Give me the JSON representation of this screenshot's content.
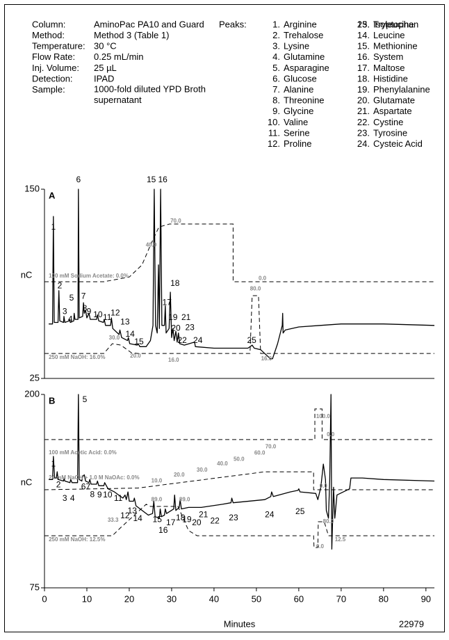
{
  "conditions": [
    {
      "label": "Column:",
      "value": "AminoPac PA10 and Guard"
    },
    {
      "label": "Method:",
      "value": "Method 3 (Table 1)"
    },
    {
      "label": "Temperature:",
      "value": "30 °C"
    },
    {
      "label": "Flow Rate:",
      "value": "0.25 mL/min"
    },
    {
      "label": "Inj. Volume:",
      "value": "25 µL"
    },
    {
      "label": "Detection:",
      "value": "IPAD"
    },
    {
      "label": "Sample:",
      "value": "1000-fold diluted YPD Broth supernatant"
    }
  ],
  "peaks_label": "Peaks:",
  "peak_names": [
    {
      "num": "1.",
      "name": "Arginine"
    },
    {
      "num": "2.",
      "name": "Trehalose"
    },
    {
      "num": "3.",
      "name": "Lysine"
    },
    {
      "num": "4.",
      "name": "Glutamine"
    },
    {
      "num": "5.",
      "name": "Asparagine"
    },
    {
      "num": "6.",
      "name": "Glucose"
    },
    {
      "num": "7.",
      "name": "Alanine"
    },
    {
      "num": "8.",
      "name": "Threonine"
    },
    {
      "num": "9.",
      "name": "Glycine"
    },
    {
      "num": "10.",
      "name": "Valine"
    },
    {
      "num": "11.",
      "name": "Serine"
    },
    {
      "num": "12.",
      "name": "Proline"
    },
    {
      "num": "13.",
      "name": "Isoleucine"
    },
    {
      "num": "14.",
      "name": "Leucine"
    },
    {
      "num": "15.",
      "name": "Methionine"
    },
    {
      "num": "16.",
      "name": "System"
    },
    {
      "num": "17.",
      "name": "Maltose"
    },
    {
      "num": "18.",
      "name": "Histidine"
    },
    {
      "num": "19.",
      "name": "Phenylalanine"
    },
    {
      "num": "20.",
      "name": "Glutamate"
    },
    {
      "num": "21.",
      "name": "Aspartate"
    },
    {
      "num": "22.",
      "name": "Cystine"
    },
    {
      "num": "23.",
      "name": "Tyrosine"
    },
    {
      "num": "24.",
      "name": "Cysteic Acid"
    },
    {
      "num": "25.",
      "name": "Tryptophan"
    }
  ],
  "figure_id": "22979",
  "chart_data": [
    {
      "type": "line",
      "panel_label": "A",
      "ylabel": "nC",
      "xlim": [
        0,
        92
      ],
      "ylim": [
        25,
        150
      ],
      "yticks": [
        25,
        150
      ],
      "color": "#000000",
      "trace": {
        "x": [
          1.0,
          1.9,
          2.1,
          2.3,
          3.2,
          3.4,
          3.6,
          4.5,
          4.6,
          4.8,
          5.8,
          5.9,
          6.1,
          6.9,
          7.0,
          7.2,
          7.9,
          8.0,
          8.2,
          9.0,
          9.2,
          9.4,
          9.7,
          10.0,
          10.5,
          10.8,
          12.3,
          12.5,
          12.8,
          13.9,
          14.1,
          14.4,
          15.6,
          15.8,
          16.1,
          17.6,
          17.8,
          18.2,
          19.6,
          19.8,
          20.1,
          21.9,
          22.1,
          22.5,
          24.0,
          25.0,
          25.6,
          25.9,
          26.2,
          26.6,
          26.9,
          27.1,
          27.4,
          27.7,
          28.3,
          28.5,
          28.7,
          29.4,
          29.7,
          30.0,
          30.3,
          30.6,
          31.0,
          31.3,
          31.6,
          31.9,
          33.0,
          35.4,
          35.6,
          40,
          48,
          49,
          49.5,
          51,
          53.3,
          53.8,
          55,
          56.1,
          56.2,
          56.3,
          56.8,
          60,
          65,
          70,
          80,
          92
        ],
        "y": [
          61,
          61,
          132,
          62,
          62,
          83,
          63,
          62,
          66,
          62,
          63,
          64,
          62,
          63,
          68,
          64,
          64,
          150,
          65,
          66,
          75,
          68,
          70,
          65,
          68,
          64,
          64,
          67,
          63,
          62,
          64,
          60,
          60,
          65,
          58,
          54,
          57,
          52,
          50,
          52,
          48,
          47,
          48,
          46,
          46,
          50,
          60,
          150,
          60,
          55,
          100,
          58,
          150,
          60,
          60,
          73,
          55,
          58,
          82,
          52,
          58,
          50,
          56,
          49,
          55,
          48,
          47,
          49,
          46,
          45,
          45,
          47,
          45,
          44,
          38,
          38,
          48,
          60,
          68,
          55,
          57,
          59,
          60,
          61,
          61,
          60
        ]
      },
      "gradients": [
        {
          "x": [
            0,
            14,
            20,
            23,
            25,
            27,
            29.5,
            44.5,
            44.5,
            92
          ],
          "y": [
            88.9,
            88.9,
            92,
            100,
            113,
            125,
            127,
            127,
            88.9,
            88.9
          ]
        },
        {
          "x": [
            0,
            14,
            16,
            18,
            20.5,
            22,
            48.5,
            49,
            50.5,
            51,
            92
          ],
          "y": [
            41.5,
            41.5,
            48,
            47,
            42,
            41.5,
            41.5,
            79.7,
            79.7,
            41.5,
            41.5
          ]
        }
      ],
      "peaks": [
        {
          "label": "1",
          "x": 2.1,
          "y": 124.7
        },
        {
          "label": "2",
          "x": 3.6,
          "y": 86
        },
        {
          "label": "3",
          "x": 4.8,
          "y": 69
        },
        {
          "label": "4",
          "x": 6.1,
          "y": 64
        },
        {
          "label": "5",
          "x": 6.4,
          "y": 78
        },
        {
          "label": "6",
          "x": 8.0,
          "y": 156
        },
        {
          "label": "7",
          "x": 9.2,
          "y": 79
        },
        {
          "label": "8",
          "x": 9.5,
          "y": 71
        },
        {
          "label": "9",
          "x": 10.5,
          "y": 69
        },
        {
          "label": "10",
          "x": 12.6,
          "y": 67
        },
        {
          "label": "11",
          "x": 14.8,
          "y": 65
        },
        {
          "label": "12",
          "x": 16.7,
          "y": 68
        },
        {
          "label": "13",
          "x": 19.0,
          "y": 62
        },
        {
          "label": "14",
          "x": 20.2,
          "y": 54
        },
        {
          "label": "15",
          "x": 22.3,
          "y": 49
        },
        {
          "label": "15",
          "x": 25.2,
          "y": 156
        },
        {
          "label": "16",
          "x": 27.9,
          "y": 156
        },
        {
          "label": "17",
          "x": 28.9,
          "y": 75
        },
        {
          "label": "18",
          "x": 30.8,
          "y": 87.5
        },
        {
          "label": "19",
          "x": 30.3,
          "y": 65
        },
        {
          "label": "20",
          "x": 31.0,
          "y": 58
        },
        {
          "label": "21",
          "x": 33.4,
          "y": 65
        },
        {
          "label": "22",
          "x": 32.5,
          "y": 50
        },
        {
          "label": "23",
          "x": 34.3,
          "y": 58.5
        },
        {
          "label": "24",
          "x": 36.2,
          "y": 50
        },
        {
          "label": "25",
          "x": 48.9,
          "y": 50
        }
      ],
      "annotations": [
        {
          "text": "100 mM Sodium Acetate: 0.0%",
          "x": 1.0,
          "y": 92.6
        },
        {
          "text": "250 mM NaOH: 16.0%",
          "x": 1.0,
          "y": 38.8
        },
        {
          "text": "30.0",
          "x": 15.2,
          "y": 51.7
        },
        {
          "text": "40.0",
          "x": 23.9,
          "y": 113
        },
        {
          "text": "70.0",
          "x": 29.7,
          "y": 129
        },
        {
          "text": "20.0",
          "x": 20.2,
          "y": 39.7
        },
        {
          "text": "16.0",
          "x": 29.2,
          "y": 37
        },
        {
          "text": "0.0",
          "x": 50.5,
          "y": 91
        },
        {
          "text": "80.0",
          "x": 48.5,
          "y": 84
        },
        {
          "text": "16.0",
          "x": 51.1,
          "y": 38
        }
      ]
    },
    {
      "type": "line",
      "panel_label": "B",
      "ylabel": "nC",
      "xlabel": "Minutes",
      "xlim": [
        0,
        92
      ],
      "ylim": [
        75,
        200
      ],
      "yticks": [
        75,
        200
      ],
      "xticks": [
        0,
        10,
        20,
        30,
        40,
        50,
        60,
        70,
        80,
        90
      ],
      "color": "#000000",
      "trace": {
        "x": [
          1.0,
          1.9,
          2.1,
          2.4,
          2.8,
          3.0,
          3.2,
          4.5,
          4.6,
          4.8,
          6.0,
          6.2,
          6.5,
          7.8,
          8.0,
          8.2,
          8.8,
          9.0,
          9.4,
          9.7,
          10.5,
          10.7,
          11,
          12.3,
          12.5,
          12.8,
          14,
          14.2,
          15,
          16.5,
          18.5,
          19.0,
          19.3,
          19.7,
          20,
          21,
          21.2,
          21.6,
          24.5,
          25.5,
          25.8,
          26.1,
          27.1,
          27.3,
          27.6,
          28.3,
          28.5,
          28.8,
          30.5,
          30.7,
          31,
          31.8,
          32,
          32.3,
          34,
          37,
          42,
          44,
          44.2,
          44.5,
          52,
          53.4,
          53.6,
          54,
          58,
          59.8,
          60,
          60.3,
          64.0,
          64.5,
          65.2,
          65.8,
          66.3,
          66.5,
          67,
          67.3,
          67.6,
          67.8,
          68.2,
          68.5,
          69,
          72,
          72.3,
          75,
          80,
          92
        ],
        "y": [
          145,
          145,
          160,
          146,
          146,
          150,
          145,
          144,
          146,
          144,
          143,
          145,
          143,
          143,
          200,
          145,
          144,
          147,
          148,
          144,
          143,
          145,
          142,
          142,
          144,
          141,
          141,
          143,
          139,
          137,
          133,
          135,
          132,
          137,
          131,
          131,
          133,
          128,
          122,
          123,
          131,
          121,
          120,
          126,
          121,
          122,
          126,
          123,
          126,
          135,
          125,
          127,
          132,
          126,
          127,
          127,
          129,
          130,
          133,
          130,
          132,
          134,
          137,
          134,
          137,
          138,
          139,
          137,
          136,
          132,
          140,
          155,
          145,
          125,
          120,
          145,
          200,
          100,
          140,
          120,
          135,
          139,
          146,
          146,
          145,
          144
        ]
      },
      "gradients": [
        {
          "x": [
            0,
            63.8,
            63.8,
            65.5,
            65.5,
            92
          ],
          "y": [
            170.8,
            170.8,
            190.6,
            190.6,
            170.8,
            170.8
          ]
        },
        {
          "x": [
            0,
            22,
            52,
            63.5,
            63.5,
            92
          ],
          "y": [
            138.4,
            139.5,
            150,
            150,
            138.4,
            138.4
          ]
        },
        {
          "x": [
            0,
            16,
            18,
            24,
            25,
            31.5,
            34,
            36,
            63.5,
            63.6,
            64.5,
            64.6,
            66,
            67,
            92
          ],
          "y": [
            108.7,
            108.7,
            114,
            129,
            127.6,
            127.6,
            112,
            108.7,
            108.7,
            101,
            101,
            117.7,
            117.7,
            108.7,
            108.7
          ]
        }
      ],
      "peaks": [
        {
          "label": "1",
          "x": 2.1,
          "y": 155
        },
        {
          "label": "2",
          "x": 3.3,
          "y": 141.5
        },
        {
          "label": "3",
          "x": 4.8,
          "y": 132.6
        },
        {
          "label": "4",
          "x": 6.6,
          "y": 132.6
        },
        {
          "label": "5",
          "x": 9.5,
          "y": 196.4
        },
        {
          "label": "6",
          "x": 9.2,
          "y": 140
        },
        {
          "label": "7",
          "x": 10.3,
          "y": 140
        },
        {
          "label": "8",
          "x": 11.3,
          "y": 135
        },
        {
          "label": "9",
          "x": 13.0,
          "y": 134.8
        },
        {
          "label": "10",
          "x": 14.9,
          "y": 134.8
        },
        {
          "label": "11",
          "x": 17.4,
          "y": 132.6
        },
        {
          "label": "12",
          "x": 19.0,
          "y": 121.3
        },
        {
          "label": "13",
          "x": 20.7,
          "y": 124.5
        },
        {
          "label": "14",
          "x": 22.0,
          "y": 119.5
        },
        {
          "label": "15",
          "x": 26.6,
          "y": 119
        },
        {
          "label": "16",
          "x": 28.0,
          "y": 112
        },
        {
          "label": "17",
          "x": 29.8,
          "y": 117
        },
        {
          "label": "18",
          "x": 32.1,
          "y": 120
        },
        {
          "label": "19",
          "x": 33.6,
          "y": 119
        },
        {
          "label": "20",
          "x": 35.9,
          "y": 117
        },
        {
          "label": "21",
          "x": 37.5,
          "y": 122
        },
        {
          "label": "22",
          "x": 40.2,
          "y": 118
        },
        {
          "label": "23",
          "x": 44.6,
          "y": 120
        },
        {
          "label": "24",
          "x": 53.1,
          "y": 122
        },
        {
          "label": "25",
          "x": 60.3,
          "y": 124
        }
      ],
      "annotations": [
        {
          "text": "100 mM Acetic Acid: 0.0%",
          "x": 1.0,
          "y": 162.2
        },
        {
          "text": "24 mM NaOH + 1.0 M NaOAc: 0.0%",
          "x": 1.0,
          "y": 146
        },
        {
          "text": "250 mM NaOH: 12.5%",
          "x": 1.0,
          "y": 106
        },
        {
          "text": "33.3",
          "x": 14.9,
          "y": 118.6
        },
        {
          "text": "10.0",
          "x": 25.2,
          "y": 144
        },
        {
          "text": "89.0",
          "x": 25.2,
          "y": 132
        },
        {
          "text": "89.0",
          "x": 31.8,
          "y": 132
        },
        {
          "text": "20.0",
          "x": 30.5,
          "y": 148
        },
        {
          "text": "30.0",
          "x": 35.9,
          "y": 151
        },
        {
          "text": "40.0",
          "x": 40.7,
          "y": 155
        },
        {
          "text": "50.0",
          "x": 44.6,
          "y": 158
        },
        {
          "text": "60.0",
          "x": 49.5,
          "y": 162
        },
        {
          "text": "70.0",
          "x": 52.1,
          "y": 166
        },
        {
          "text": "100.0",
          "x": 64.1,
          "y": 185.6
        },
        {
          "text": "0.0",
          "x": 66.6,
          "y": 174
        },
        {
          "text": "0.0",
          "x": 64.9,
          "y": 140.6
        },
        {
          "text": "80.0",
          "x": 65.7,
          "y": 117.7
        },
        {
          "text": "0.0",
          "x": 64.1,
          "y": 101.5
        },
        {
          "text": "12.5",
          "x": 68.5,
          "y": 106
        }
      ]
    }
  ]
}
